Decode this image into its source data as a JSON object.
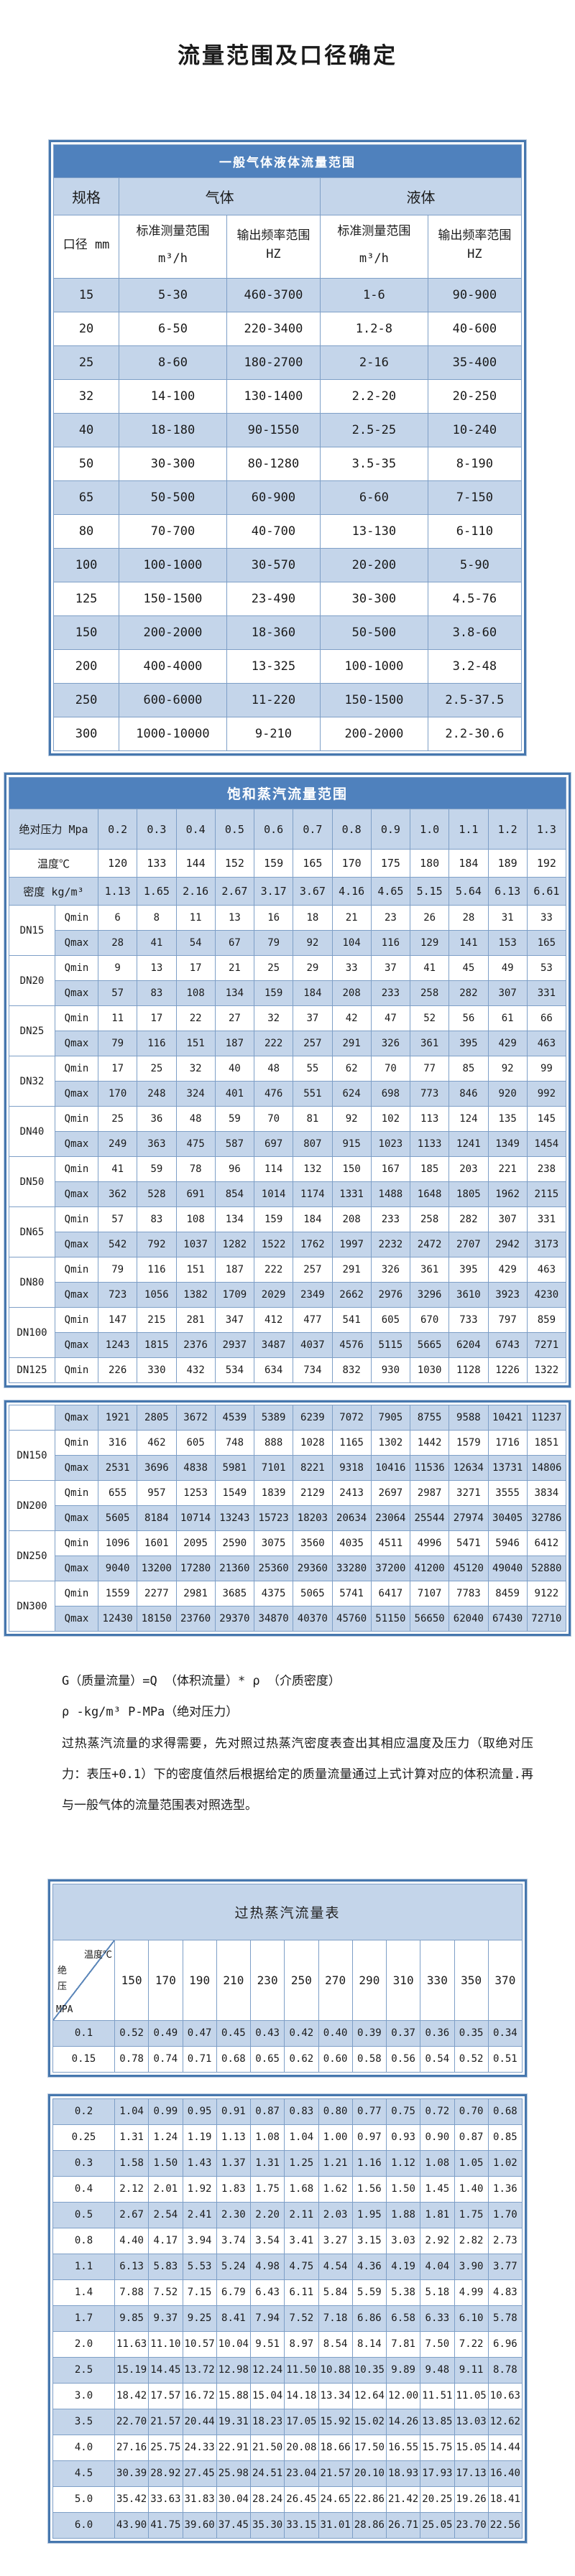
{
  "page_title": "流量范围及口径确定",
  "colors": {
    "header_blue": "#4f81bd",
    "stripe_blue": "#c4d5ea",
    "border_blue": "#4677ae"
  },
  "table1": {
    "title": "一般气体液体流量范围",
    "spec_header": "规格",
    "gas_header": "气体",
    "liquid_header": "液体",
    "diameter_header": "口径 mm",
    "range_header": "标准测量范围",
    "range_unit": "m³/h",
    "freq_header": "输出频率范围 HZ",
    "rows": [
      {
        "dn": "15",
        "gas_range": "5-30",
        "gas_freq": "460-3700",
        "liq_range": "1-6",
        "liq_freq": "90-900"
      },
      {
        "dn": "20",
        "gas_range": "6-50",
        "gas_freq": "220-3400",
        "liq_range": "1.2-8",
        "liq_freq": "40-600"
      },
      {
        "dn": "25",
        "gas_range": "8-60",
        "gas_freq": "180-2700",
        "liq_range": "2-16",
        "liq_freq": "35-400"
      },
      {
        "dn": "32",
        "gas_range": "14-100",
        "gas_freq": "130-1400",
        "liq_range": "2.2-20",
        "liq_freq": "20-250"
      },
      {
        "dn": "40",
        "gas_range": "18-180",
        "gas_freq": "90-1550",
        "liq_range": "2.5-25",
        "liq_freq": "10-240"
      },
      {
        "dn": "50",
        "gas_range": "30-300",
        "gas_freq": "80-1280",
        "liq_range": "3.5-35",
        "liq_freq": "8-190"
      },
      {
        "dn": "65",
        "gas_range": "50-500",
        "gas_freq": "60-900",
        "liq_range": "6-60",
        "liq_freq": "7-150"
      },
      {
        "dn": "80",
        "gas_range": "70-700",
        "gas_freq": "40-700",
        "liq_range": "13-130",
        "liq_freq": "6-110"
      },
      {
        "dn": "100",
        "gas_range": "100-1000",
        "gas_freq": "30-570",
        "liq_range": "20-200",
        "liq_freq": "5-90"
      },
      {
        "dn": "125",
        "gas_range": "150-1500",
        "gas_freq": "23-490",
        "liq_range": "30-300",
        "liq_freq": "4.5-76"
      },
      {
        "dn": "150",
        "gas_range": "200-2000",
        "gas_freq": "18-360",
        "liq_range": "50-500",
        "liq_freq": "3.8-60"
      },
      {
        "dn": "200",
        "gas_range": "400-4000",
        "gas_freq": "13-325",
        "liq_range": "100-1000",
        "liq_freq": "3.2-48"
      },
      {
        "dn": "250",
        "gas_range": "600-6000",
        "gas_freq": "11-220",
        "liq_range": "150-1500",
        "liq_freq": "2.5-37.5"
      },
      {
        "dn": "300",
        "gas_range": "1000-10000",
        "gas_freq": "9-210",
        "liq_range": "200-2000",
        "liq_freq": "2.2-30.6"
      }
    ]
  },
  "table2": {
    "title": "饱和蒸汽流量范围",
    "pressure_label": "绝对压力 Mpa",
    "pressures": [
      "0.2",
      "0.3",
      "0.4",
      "0.5",
      "0.6",
      "0.7",
      "0.8",
      "0.9",
      "1.0",
      "1.1",
      "1.2",
      "1.3"
    ],
    "temperature_label": "温度℃",
    "temperatures": [
      "120",
      "133",
      "144",
      "152",
      "159",
      "165",
      "170",
      "175",
      "180",
      "184",
      "189",
      "192"
    ],
    "density_label": "密度 kg/m³",
    "densities": [
      "1.13",
      "1.65",
      "2.16",
      "2.67",
      "3.17",
      "3.67",
      "4.16",
      "4.65",
      "5.15",
      "5.64",
      "6.13",
      "6.61"
    ],
    "qmin_label": "Qmin",
    "qmax_label": "Qmax",
    "block1": [
      {
        "dn": "DN15",
        "qmin": [
          6,
          8,
          11,
          13,
          16,
          18,
          21,
          23,
          26,
          28,
          31,
          33
        ],
        "qmax": [
          28,
          41,
          54,
          67,
          79,
          92,
          104,
          116,
          129,
          141,
          153,
          165
        ]
      },
      {
        "dn": "DN20",
        "qmin": [
          9,
          13,
          17,
          21,
          25,
          29,
          33,
          37,
          41,
          45,
          49,
          53
        ],
        "qmax": [
          57,
          83,
          108,
          134,
          159,
          184,
          208,
          233,
          258,
          282,
          307,
          331
        ]
      },
      {
        "dn": "DN25",
        "qmin": [
          11,
          17,
          22,
          27,
          32,
          37,
          42,
          47,
          52,
          56,
          61,
          66
        ],
        "qmax": [
          79,
          116,
          151,
          187,
          222,
          257,
          291,
          326,
          361,
          395,
          429,
          463
        ]
      },
      {
        "dn": "DN32",
        "qmin": [
          17,
          25,
          32,
          40,
          48,
          55,
          62,
          70,
          77,
          85,
          92,
          99
        ],
        "qmax": [
          170,
          248,
          324,
          401,
          476,
          551,
          624,
          698,
          773,
          846,
          920,
          992
        ]
      },
      {
        "dn": "DN40",
        "qmin": [
          25,
          36,
          48,
          59,
          70,
          81,
          92,
          102,
          113,
          124,
          135,
          145
        ],
        "qmax": [
          249,
          363,
          475,
          587,
          697,
          807,
          915,
          1023,
          1133,
          1241,
          1349,
          1454
        ]
      },
      {
        "dn": "DN50",
        "qmin": [
          41,
          59,
          78,
          96,
          114,
          132,
          150,
          167,
          185,
          203,
          221,
          238
        ],
        "qmax": [
          362,
          528,
          691,
          854,
          1014,
          1174,
          1331,
          1488,
          1648,
          1805,
          1962,
          2115
        ]
      },
      {
        "dn": "DN65",
        "qmin": [
          57,
          83,
          108,
          134,
          159,
          184,
          208,
          233,
          258,
          282,
          307,
          331
        ],
        "qmax": [
          542,
          792,
          1037,
          1282,
          1522,
          1762,
          1997,
          2232,
          2472,
          2707,
          2942,
          3173
        ]
      },
      {
        "dn": "DN80",
        "qmin": [
          79,
          116,
          151,
          187,
          222,
          257,
          291,
          326,
          361,
          395,
          429,
          463
        ],
        "qmax": [
          723,
          1056,
          1382,
          1709,
          2029,
          2349,
          2662,
          2976,
          3296,
          3610,
          3923,
          4230
        ]
      },
      {
        "dn": "DN100",
        "qmin": [
          147,
          215,
          281,
          347,
          412,
          477,
          541,
          605,
          670,
          733,
          797,
          859
        ],
        "qmax": [
          1243,
          1815,
          2376,
          2937,
          3487,
          4037,
          4576,
          5115,
          5665,
          6204,
          6743,
          7271
        ]
      },
      {
        "dn": "DN125",
        "qmin": [
          226,
          330,
          432,
          534,
          634,
          734,
          832,
          930,
          1030,
          1128,
          1226,
          1322
        ]
      }
    ],
    "block2_first_qmax": [
      1921,
      2805,
      3672,
      4539,
      5389,
      6239,
      7072,
      7905,
      8755,
      9588,
      10421,
      11237
    ],
    "block2": [
      {
        "dn": "DN150",
        "qmin": [
          316,
          462,
          605,
          748,
          888,
          1028,
          1165,
          1302,
          1442,
          1579,
          1716,
          1851
        ],
        "qmax": [
          2531,
          3696,
          4838,
          5981,
          7101,
          8221,
          9318,
          10416,
          11536,
          12634,
          13731,
          14806
        ]
      },
      {
        "dn": "DN200",
        "qmin": [
          655,
          957,
          1253,
          1549,
          1839,
          2129,
          2413,
          2697,
          2987,
          3271,
          3555,
          3834
        ],
        "qmax": [
          5605,
          8184,
          10714,
          13243,
          15723,
          18203,
          20634,
          23064,
          25544,
          27974,
          30405,
          32786
        ]
      },
      {
        "dn": "DN250",
        "qmin": [
          1096,
          1601,
          2095,
          2590,
          3075,
          3560,
          4035,
          4511,
          4996,
          5471,
          5946,
          6412
        ],
        "qmax": [
          9040,
          13200,
          17280,
          21360,
          25360,
          29360,
          33280,
          37200,
          41200,
          45120,
          49040,
          52880
        ]
      },
      {
        "dn": "DN300",
        "qmin": [
          1559,
          2277,
          2981,
          3685,
          4375,
          5065,
          5741,
          6417,
          7107,
          7783,
          8459,
          9122
        ],
        "qmax": [
          12430,
          18150,
          23760,
          29370,
          34870,
          40370,
          45760,
          51150,
          56650,
          62040,
          67430,
          72710
        ]
      }
    ]
  },
  "notes": {
    "formula": "G（质量流量）=Q （体积流量）* ρ （介质密度）",
    "units": "ρ -kg/m³ P-MPa（绝对压力）",
    "paragraph": "过热蒸汽流量的求得需要，先对照过热蒸汽密度表查出其相应温度及压力（取绝对压力：表压+0.1）下的密度值然后根据给定的质量流量通过上式计算对应的体积流量.再与一般气体的流量范围表对照选型。"
  },
  "table3": {
    "title": "过热蒸汽流量表",
    "corner_temperature_label": "温度℃",
    "corner_pressure_label": "绝压",
    "corner_pressure_unit": "MPA",
    "temperatures": [
      "150",
      "170",
      "190",
      "210",
      "230",
      "250",
      "270",
      "290",
      "310",
      "330",
      "350",
      "370"
    ],
    "block1": [
      {
        "pressure": "0.1",
        "values": [
          "0.52",
          "0.49",
          "0.47",
          "0.45",
          "0.43",
          "0.42",
          "0.40",
          "0.39",
          "0.37",
          "0.36",
          "0.35",
          "0.34"
        ]
      },
      {
        "pressure": "0.15",
        "values": [
          "0.78",
          "0.74",
          "0.71",
          "0.68",
          "0.65",
          "0.62",
          "0.60",
          "0.58",
          "0.56",
          "0.54",
          "0.52",
          "0.51"
        ]
      }
    ],
    "block2": [
      {
        "pressure": "0.2",
        "values": [
          "1.04",
          "0.99",
          "0.95",
          "0.91",
          "0.87",
          "0.83",
          "0.80",
          "0.77",
          "0.75",
          "0.72",
          "0.70",
          "0.68"
        ]
      },
      {
        "pressure": "0.25",
        "values": [
          "1.31",
          "1.24",
          "1.19",
          "1.13",
          "1.08",
          "1.04",
          "1.00",
          "0.97",
          "0.93",
          "0.90",
          "0.87",
          "0.85"
        ]
      },
      {
        "pressure": "0.3",
        "values": [
          "1.58",
          "1.50",
          "1.43",
          "1.37",
          "1.31",
          "1.25",
          "1.21",
          "1.16",
          "1.12",
          "1.08",
          "1.05",
          "1.02"
        ]
      },
      {
        "pressure": "0.4",
        "values": [
          "2.12",
          "2.01",
          "1.92",
          "1.83",
          "1.75",
          "1.68",
          "1.62",
          "1.56",
          "1.50",
          "1.45",
          "1.40",
          "1.36"
        ]
      },
      {
        "pressure": "0.5",
        "values": [
          "2.67",
          "2.54",
          "2.41",
          "2.30",
          "2.20",
          "2.11",
          "2.03",
          "1.95",
          "1.88",
          "1.81",
          "1.75",
          "1.70"
        ]
      },
      {
        "pressure": "0.8",
        "values": [
          "4.40",
          "4.17",
          "3.94",
          "3.74",
          "3.54",
          "3.41",
          "3.27",
          "3.15",
          "3.03",
          "2.92",
          "2.82",
          "2.73"
        ]
      },
      {
        "pressure": "1.1",
        "values": [
          "6.13",
          "5.83",
          "5.53",
          "5.24",
          "4.98",
          "4.75",
          "4.54",
          "4.36",
          "4.19",
          "4.04",
          "3.90",
          "3.77"
        ]
      },
      {
        "pressure": "1.4",
        "values": [
          "7.88",
          "7.52",
          "7.15",
          "6.79",
          "6.43",
          "6.11",
          "5.84",
          "5.59",
          "5.38",
          "5.18",
          "4.99",
          "4.83"
        ]
      },
      {
        "pressure": "1.7",
        "values": [
          "9.85",
          "9.37",
          "9.25",
          "8.41",
          "7.94",
          "7.52",
          "7.18",
          "6.86",
          "6.58",
          "6.33",
          "6.10",
          "5.78"
        ]
      },
      {
        "pressure": "2.0",
        "values": [
          "11.63",
          "11.10",
          "10.57",
          "10.04",
          "9.51",
          "8.97",
          "8.54",
          "8.14",
          "7.81",
          "7.50",
          "7.22",
          "6.96"
        ]
      },
      {
        "pressure": "2.5",
        "values": [
          "15.19",
          "14.45",
          "13.72",
          "12.98",
          "12.24",
          "11.50",
          "10.88",
          "10.35",
          "9.89",
          "9.48",
          "9.11",
          "8.78"
        ]
      },
      {
        "pressure": "3.0",
        "values": [
          "18.42",
          "17.57",
          "16.72",
          "15.88",
          "15.04",
          "14.18",
          "13.34",
          "12.64",
          "12.00",
          "11.51",
          "11.05",
          "10.63"
        ]
      },
      {
        "pressure": "3.5",
        "values": [
          "22.70",
          "21.57",
          "20.44",
          "19.31",
          "18.23",
          "17.05",
          "15.92",
          "15.02",
          "14.26",
          "13.85",
          "13.03",
          "12.62"
        ]
      },
      {
        "pressure": "4.0",
        "values": [
          "27.16",
          "25.75",
          "24.33",
          "22.91",
          "21.50",
          "20.08",
          "18.66",
          "17.50",
          "16.55",
          "15.75",
          "15.05",
          "14.44"
        ]
      },
      {
        "pressure": "4.5",
        "values": [
          "30.39",
          "28.92",
          "27.45",
          "25.98",
          "24.51",
          "23.04",
          "21.57",
          "20.10",
          "18.93",
          "17.93",
          "17.13",
          "16.40"
        ]
      },
      {
        "pressure": "5.0",
        "values": [
          "35.42",
          "33.63",
          "31.83",
          "30.04",
          "28.24",
          "26.45",
          "24.65",
          "22.86",
          "21.42",
          "20.25",
          "19.26",
          "18.41"
        ]
      },
      {
        "pressure": "6.0",
        "values": [
          "43.90",
          "41.75",
          "39.60",
          "37.45",
          "35.30",
          "33.15",
          "31.01",
          "28.86",
          "26.71",
          "25.05",
          "23.70",
          "22.56"
        ]
      }
    ]
  }
}
